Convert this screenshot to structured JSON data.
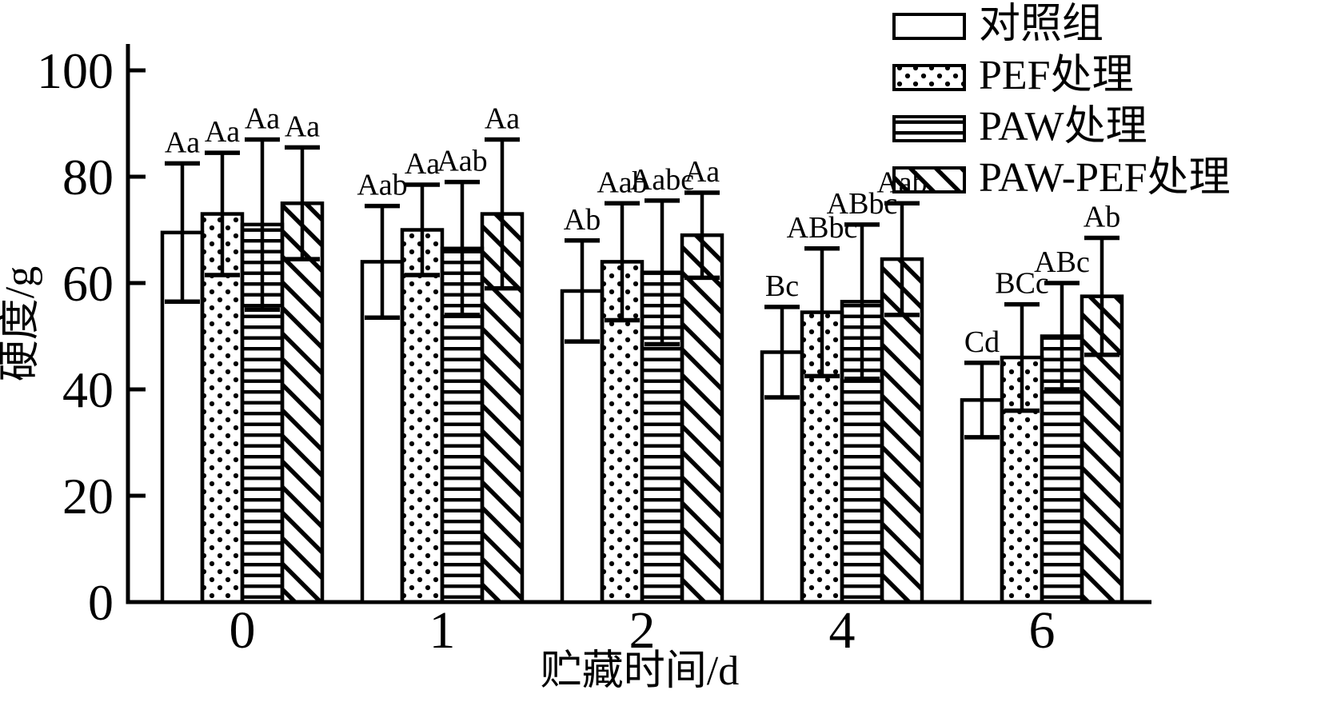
{
  "chart_data": {
    "type": "bar",
    "title": "",
    "xlabel": "贮藏时间/d",
    "ylabel": "硬度/g",
    "categories": [
      "0",
      "1",
      "2",
      "4",
      "6"
    ],
    "ylim": [
      0,
      100
    ],
    "yticks": [
      0,
      20,
      40,
      60,
      80,
      100
    ],
    "y_tick_labels": [
      "0",
      "20",
      "40",
      "60",
      "80",
      "100"
    ],
    "grid": false,
    "legend_position": "top-right",
    "colors": {
      "foreground": "#000000",
      "background": "#ffffff"
    },
    "series": [
      {
        "name": "对照组",
        "pattern": "plain",
        "values": [
          69.5,
          64,
          58.5,
          47,
          38
        ],
        "errors": [
          13,
          10.5,
          9.5,
          8.5,
          7
        ],
        "point_labels": [
          "Aa",
          "Aab",
          "Ab",
          "Bc",
          "Cd"
        ]
      },
      {
        "name": "PEF处理",
        "pattern": "dots",
        "values": [
          73,
          70,
          64,
          54.5,
          46
        ],
        "errors": [
          11.5,
          8.5,
          11,
          12,
          10
        ],
        "point_labels": [
          "Aa",
          "Aa",
          "Aab",
          "ABbc",
          "BCc"
        ]
      },
      {
        "name": "PAW处理",
        "pattern": "horizontal-lines",
        "values": [
          71,
          66.5,
          62,
          56.5,
          50
        ],
        "errors": [
          16,
          12.5,
          13.5,
          14.5,
          10
        ],
        "point_labels": [
          "Aa",
          "Aab",
          "Aabc",
          "ABbc",
          "ABc"
        ]
      },
      {
        "name": "PAW-PEF处理",
        "pattern": "diagonal-lines",
        "values": [
          75,
          73,
          69,
          64.5,
          57.5
        ],
        "errors": [
          10.5,
          14,
          8,
          10.5,
          11
        ],
        "point_labels": [
          "Aa",
          "Aa",
          "Aa",
          "Aab",
          "Ab"
        ]
      }
    ]
  }
}
